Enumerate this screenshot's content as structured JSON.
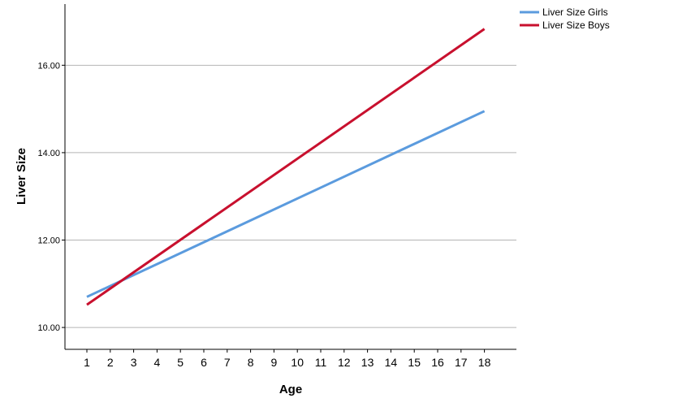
{
  "chart_data": {
    "type": "line",
    "title": "",
    "xlabel": "Age",
    "ylabel": "Liver Size",
    "categories": [
      "1",
      "2",
      "3",
      "4",
      "5",
      "6",
      "7",
      "8",
      "9",
      "10",
      "11",
      "12",
      "13",
      "14",
      "15",
      "16",
      "17",
      "18"
    ],
    "x": [
      1,
      18
    ],
    "ylim": [
      9.5,
      17.4
    ],
    "yticks": [
      10,
      12,
      14,
      16
    ],
    "ytick_labels": [
      "10.00",
      "12.00",
      "14.00",
      "16.00"
    ],
    "grid": "horizontal",
    "legend_position": "top-right",
    "series": [
      {
        "name": "Liver Size Girls",
        "x": [
          1,
          18
        ],
        "values": [
          10.7,
          14.95
        ],
        "color": "#5b9bde"
      },
      {
        "name": "Liver Size Boys",
        "x": [
          1,
          18
        ],
        "values": [
          10.52,
          16.83
        ],
        "color": "#c8102e"
      }
    ]
  }
}
